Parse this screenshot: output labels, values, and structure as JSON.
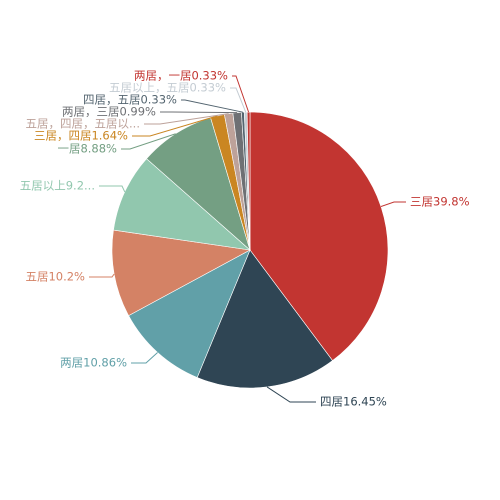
{
  "chart_data": {
    "type": "pie",
    "title": "",
    "slices": [
      {
        "label": "三居39.8%",
        "value": 39.8,
        "color": "#c23531"
      },
      {
        "label": "四居16.45%",
        "value": 16.45,
        "color": "#2f4554"
      },
      {
        "label": "两居10.86%",
        "value": 10.86,
        "color": "#61a0a8"
      },
      {
        "label": "五居10.2%",
        "value": 10.2,
        "color": "#d48265"
      },
      {
        "label": "五居以上9.2...",
        "value": 9.2,
        "color": "#91c7ae"
      },
      {
        "label": "一居8.88%",
        "value": 8.88,
        "color": "#749f83"
      },
      {
        "label": "三居，四居1.64%",
        "value": 1.64,
        "color": "#ca8622"
      },
      {
        "label": "五居，四居，五居以...",
        "value": 0.99,
        "color": "#bda29a"
      },
      {
        "label": "两居，三居0.99%",
        "value": 0.99,
        "color": "#6e7074"
      },
      {
        "label": "四居，五居0.33%",
        "value": 0.33,
        "color": "#546570"
      },
      {
        "label": "五居以上，五居0.33%",
        "value": 0.33,
        "color": "#c4ccd3"
      },
      {
        "label": "两居，一居0.33%",
        "value": 0.33,
        "color": "#c23531"
      }
    ]
  }
}
